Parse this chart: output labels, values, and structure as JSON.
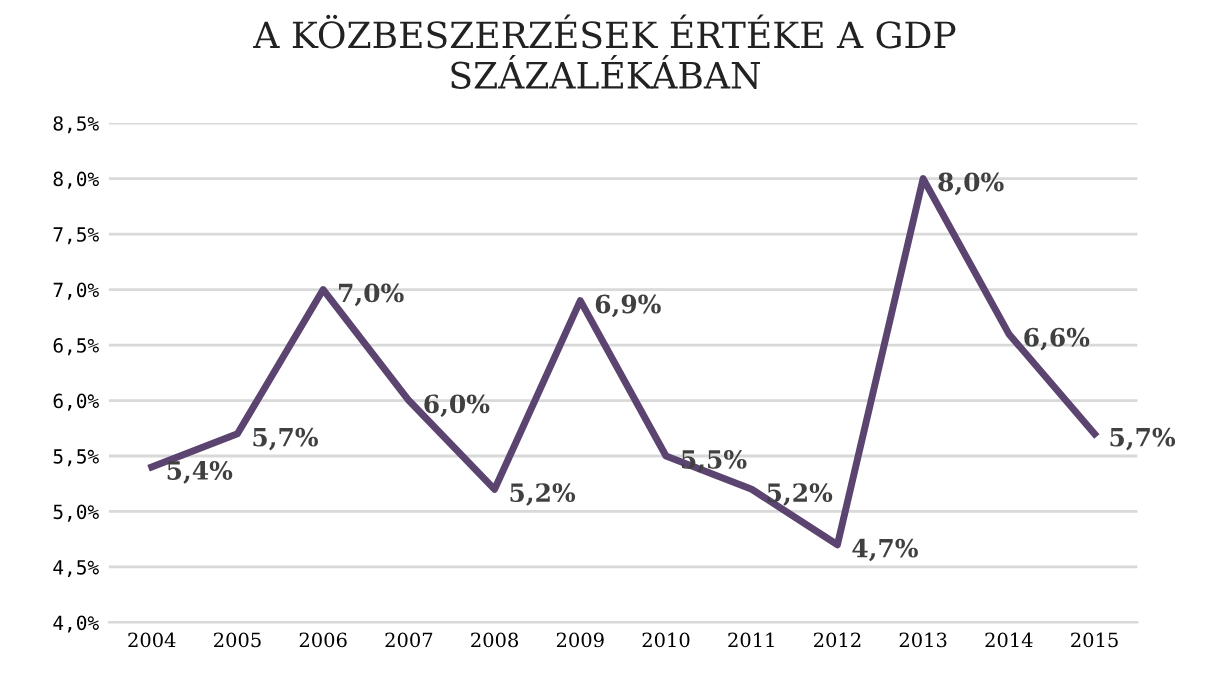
{
  "chart_data": {
    "type": "line",
    "title": "A KÖZBESZERZÉSEK ÉRTÉKE A GDP\nSZÁZALÉKÁBAN",
    "categories": [
      "2004",
      "2005",
      "2006",
      "2007",
      "2008",
      "2009",
      "2010",
      "2011",
      "2012",
      "2013",
      "2014",
      "2015"
    ],
    "series": [
      {
        "color": "#5b4470",
        "values": [
          5.4,
          5.7,
          7.0,
          6.0,
          5.2,
          6.9,
          5.5,
          5.2,
          4.7,
          8.0,
          6.6,
          5.7
        ],
        "value_labels": [
          "5,4%",
          "5,7%",
          "7,0%",
          "6,0%",
          "5,2%",
          "6,9%",
          "5,5%",
          "5,2%",
          "4,7%",
          "8,0%",
          "6,6%",
          "5,7%"
        ]
      }
    ],
    "ylim": [
      4.0,
      8.5
    ],
    "yticks": [
      {
        "value": 4.0,
        "label": "4,0%"
      },
      {
        "value": 4.5,
        "label": "4,5%"
      },
      {
        "value": 5.0,
        "label": "5,0%"
      },
      {
        "value": 5.5,
        "label": "5,5%"
      },
      {
        "value": 6.0,
        "label": "6,0%"
      },
      {
        "value": 6.5,
        "label": "6,5%"
      },
      {
        "value": 7.0,
        "label": "7,0%"
      },
      {
        "value": 7.5,
        "label": "7,5%"
      },
      {
        "value": 8.0,
        "label": "8,0%"
      },
      {
        "value": 8.5,
        "label": "8,5%"
      }
    ],
    "grid": "y",
    "marker": "none",
    "line_style": "solid"
  }
}
